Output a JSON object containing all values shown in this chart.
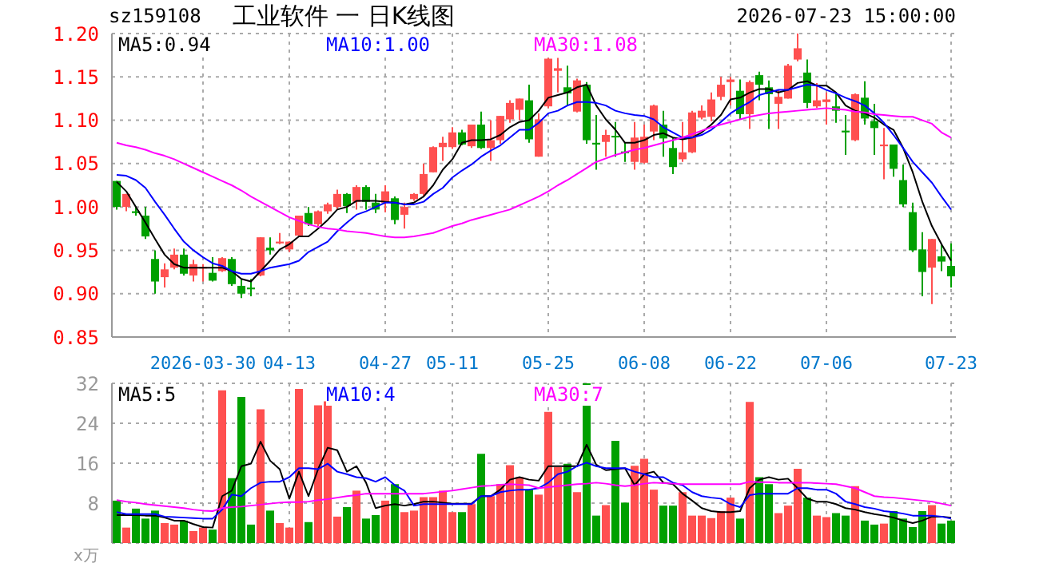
{
  "chart_data": [
    {
      "type": "candlestick",
      "title": "工业软件 一 日K线图",
      "subtitle": "sz159108",
      "annotations": [
        "2026-07-23 15:00:00"
      ],
      "categories": [
        null,
        null,
        null,
        null,
        null,
        null,
        null,
        null,
        null,
        "2026-03-30",
        null,
        null,
        null,
        null,
        null,
        null,
        null,
        null,
        "04-13",
        null,
        null,
        null,
        null,
        null,
        null,
        null,
        null,
        null,
        "04-27",
        null,
        null,
        null,
        null,
        null,
        null,
        "05-11",
        null,
        null,
        null,
        null,
        null,
        null,
        null,
        null,
        null,
        "05-25",
        null,
        null,
        null,
        null,
        null,
        null,
        null,
        null,
        null,
        "06-08",
        null,
        null,
        null,
        null,
        null,
        null,
        null,
        null,
        "06-22",
        null,
        null,
        null,
        null,
        null,
        null,
        null,
        null,
        null,
        "07-06",
        null,
        null,
        null,
        null,
        null,
        null,
        null,
        null,
        null,
        null,
        null,
        null,
        "07-23"
      ],
      "ohlc": [
        [
          1.03,
          1.03,
          0.997,
          1.0
        ],
        [
          1.0,
          1.015,
          0.995,
          1.015
        ],
        [
          0.995,
          1.0,
          0.99,
          0.993
        ],
        [
          0.99,
          1.0,
          0.963,
          0.966
        ],
        [
          0.94,
          0.95,
          0.9,
          0.914
        ],
        [
          0.919,
          0.935,
          0.907,
          0.928
        ],
        [
          0.93,
          0.952,
          0.928,
          0.945
        ],
        [
          0.945,
          0.952,
          0.921,
          0.923
        ],
        [
          0.921,
          0.939,
          0.914,
          0.934
        ],
        [
          0.929,
          0.934,
          0.914,
          0.931
        ],
        [
          0.924,
          0.942,
          0.914,
          0.915
        ],
        [
          0.926,
          0.942,
          0.925,
          0.941
        ],
        [
          0.94,
          0.942,
          0.909,
          0.911
        ],
        [
          0.909,
          0.917,
          0.895,
          0.9
        ],
        [
          0.907,
          0.917,
          0.897,
          0.905
        ],
        [
          0.921,
          0.965,
          0.92,
          0.965
        ],
        [
          0.953,
          0.965,
          0.945,
          0.95
        ],
        [
          0.958,
          0.97,
          0.957,
          0.96
        ],
        [
          0.951,
          0.96,
          0.948,
          0.96
        ],
        [
          0.967,
          0.99,
          0.966,
          0.99
        ],
        [
          0.993,
          1.0,
          0.978,
          0.98
        ],
        [
          0.98,
          0.996,
          0.978,
          0.995
        ],
        [
          0.995,
          1.005,
          0.992,
          1.003
        ],
        [
          1.0,
          1.02,
          0.997,
          1.015
        ],
        [
          1.015,
          1.016,
          0.993,
          1.001
        ],
        [
          1.006,
          1.025,
          0.997,
          1.023
        ],
        [
          1.023,
          1.025,
          0.997,
          1.006
        ],
        [
          1.005,
          1.015,
          0.993,
          0.997
        ],
        [
          1.005,
          1.025,
          0.994,
          1.018
        ],
        [
          1.01,
          1.012,
          0.98,
          0.985
        ],
        [
          0.991,
          1.005,
          0.975,
          1.0
        ],
        [
          1.009,
          1.016,
          1.007,
          1.015
        ],
        [
          1.015,
          1.05,
          1.012,
          1.038
        ],
        [
          1.04,
          1.07,
          1.04,
          1.069
        ],
        [
          1.069,
          1.081,
          1.053,
          1.074
        ],
        [
          1.069,
          1.092,
          1.067,
          1.086
        ],
        [
          1.086,
          1.089,
          1.071,
          1.072
        ],
        [
          1.07,
          1.095,
          1.068,
          1.095
        ],
        [
          1.095,
          1.11,
          1.067,
          1.068
        ],
        [
          1.068,
          1.1,
          1.053,
          1.077
        ],
        [
          1.077,
          1.105,
          1.073,
          1.105
        ],
        [
          1.101,
          1.123,
          1.097,
          1.12
        ],
        [
          1.112,
          1.125,
          1.1,
          1.125
        ],
        [
          1.123,
          1.141,
          1.074,
          1.078
        ],
        [
          1.058,
          1.108,
          1.058,
          1.101
        ],
        [
          1.116,
          1.172,
          1.114,
          1.171
        ],
        [
          1.157,
          1.172,
          1.132,
          1.16
        ],
        [
          1.138,
          1.163,
          1.117,
          1.131
        ],
        [
          1.11,
          1.148,
          1.109,
          1.146
        ],
        [
          1.141,
          1.144,
          1.073,
          1.077
        ],
        [
          1.074,
          1.106,
          1.043,
          1.072
        ],
        [
          1.075,
          1.089,
          1.058,
          1.083
        ],
        [
          1.082,
          1.098,
          1.058,
          1.081
        ],
        [
          1.064,
          1.074,
          1.052,
          1.062
        ],
        [
          1.052,
          1.098,
          1.043,
          1.08
        ],
        [
          1.051,
          1.095,
          1.05,
          1.081
        ],
        [
          1.087,
          1.118,
          1.077,
          1.117
        ],
        [
          1.095,
          1.111,
          1.058,
          1.079
        ],
        [
          1.068,
          1.08,
          1.038,
          1.046
        ],
        [
          1.055,
          1.098,
          1.052,
          1.063
        ],
        [
          1.063,
          1.111,
          1.062,
          1.109
        ],
        [
          1.103,
          1.117,
          1.101,
          1.111
        ],
        [
          1.104,
          1.132,
          1.099,
          1.124
        ],
        [
          1.127,
          1.15,
          1.123,
          1.141
        ],
        [
          1.144,
          1.15,
          1.117,
          1.147
        ],
        [
          1.134,
          1.147,
          1.101,
          1.107
        ],
        [
          1.107,
          1.146,
          1.09,
          1.144
        ],
        [
          1.152,
          1.156,
          1.123,
          1.141
        ],
        [
          1.138,
          1.146,
          1.09,
          1.13
        ],
        [
          1.119,
          1.135,
          1.09,
          1.127
        ],
        [
          1.125,
          1.165,
          1.125,
          1.163
        ],
        [
          1.17,
          1.2,
          1.168,
          1.183
        ],
        [
          1.155,
          1.17,
          1.114,
          1.12
        ],
        [
          1.116,
          1.143,
          1.114,
          1.123
        ],
        [
          1.121,
          1.132,
          1.095,
          1.124
        ],
        [
          1.116,
          1.132,
          1.097,
          1.111
        ],
        [
          1.088,
          1.106,
          1.06,
          1.086
        ],
        [
          1.077,
          1.131,
          1.076,
          1.13
        ],
        [
          1.126,
          1.145,
          1.095,
          1.102
        ],
        [
          1.099,
          1.119,
          1.06,
          1.091
        ],
        [
          1.07,
          1.091,
          1.032,
          1.072
        ],
        [
          1.072,
          1.072,
          1.035,
          1.044
        ],
        [
          1.031,
          1.049,
          1.0,
          1.003
        ],
        [
          0.994,
          1.005,
          0.948,
          0.95
        ],
        [
          0.951,
          0.971,
          0.897,
          0.925
        ],
        [
          0.93,
          0.963,
          0.888,
          0.963
        ],
        [
          0.943,
          0.957,
          0.926,
          0.937
        ],
        [
          0.932,
          0.958,
          0.907,
          0.92
        ]
      ],
      "colors": [
        "#00a000",
        "#ff5050",
        "#00a000",
        "#00a000",
        "#00a000",
        "#ff5050",
        "#ff5050",
        "#00a000",
        "#ff5050",
        "#ff5050",
        "#00a000",
        "#ff5050",
        "#00a000",
        "#00a000",
        "#00a000",
        "#ff5050",
        "#00a000",
        "#ff5050",
        "#ff5050",
        "#ff5050",
        "#00a000",
        "#ff5050",
        "#ff5050",
        "#ff5050",
        "#00a000",
        "#ff5050",
        "#00a000",
        "#00a000",
        "#ff5050",
        "#00a000",
        "#ff5050",
        "#ff5050",
        "#ff5050",
        "#ff5050",
        "#ff5050",
        "#ff5050",
        "#00a000",
        "#ff5050",
        "#00a000",
        "#ff5050",
        "#ff5050",
        "#ff5050",
        "#ff5050",
        "#00a000",
        "#ff5050",
        "#ff5050",
        "#ff5050",
        "#00a000",
        "#ff5050",
        "#00a000",
        "#00a000",
        "#ff5050",
        "#00a000",
        "#00a000",
        "#ff5050",
        "#ff5050",
        "#ff5050",
        "#00a000",
        "#00a000",
        "#ff5050",
        "#ff5050",
        "#ff5050",
        "#ff5050",
        "#ff5050",
        "#ff5050",
        "#00a000",
        "#ff5050",
        "#00a000",
        "#00a000",
        "#ff5050",
        "#ff5050",
        "#ff5050",
        "#00a000",
        "#ff5050",
        "#ff5050",
        "#00a000",
        "#00a000",
        "#ff5050",
        "#00a000",
        "#00a000",
        "#ff5050",
        "#00a000",
        "#00a000",
        "#00a000",
        "#00a000",
        "#ff5050",
        "#00a000",
        "#00a000"
      ],
      "series": [
        {
          "type": "line",
          "name": "MA5:0.94",
          "color": "#000000",
          "values": [
            1.029,
            1.018,
            1.0,
            0.982,
            0.963,
            0.945,
            0.934,
            0.93,
            0.93,
            0.93,
            0.93,
            0.93,
            0.926,
            0.917,
            0.914,
            0.926,
            0.938,
            0.951,
            0.957,
            0.966,
            0.966,
            0.975,
            0.985,
            0.997,
            1.0,
            1.007,
            1.007,
            1.007,
            1.006,
            1.005,
            1.003,
            1.005,
            1.012,
            1.025,
            1.043,
            1.055,
            1.074,
            1.077,
            1.077,
            1.078,
            1.083,
            1.092,
            1.098,
            1.1,
            1.111,
            1.126,
            1.129,
            1.132,
            1.138,
            1.141,
            1.117,
            1.101,
            1.089,
            1.074,
            1.074,
            1.077,
            1.083,
            1.085,
            1.08,
            1.078,
            1.08,
            1.086,
            1.095,
            1.106,
            1.124,
            1.126,
            1.132,
            1.136,
            1.136,
            1.132,
            1.135,
            1.143,
            1.145,
            1.14,
            1.14,
            1.132,
            1.117,
            1.111,
            1.108,
            1.103,
            1.095,
            1.089,
            1.068,
            1.04,
            1.006,
            0.978,
            0.957,
            0.938
          ]
        },
        {
          "type": "line",
          "name": "MA10:1.00",
          "color": "#0000ff",
          "values": [
            1.037,
            1.036,
            1.031,
            1.022,
            1.006,
            0.991,
            0.975,
            0.96,
            0.95,
            0.942,
            0.935,
            0.932,
            0.926,
            0.923,
            0.923,
            0.926,
            0.93,
            0.932,
            0.934,
            0.938,
            0.948,
            0.954,
            0.96,
            0.972,
            0.982,
            0.991,
            0.995,
            1.0,
            1.005,
            1.005,
            1.003,
            1.003,
            1.006,
            1.015,
            1.022,
            1.034,
            1.042,
            1.049,
            1.058,
            1.065,
            1.071,
            1.08,
            1.089,
            1.089,
            1.097,
            1.108,
            1.111,
            1.117,
            1.121,
            1.121,
            1.12,
            1.117,
            1.111,
            1.108,
            1.106,
            1.105,
            1.101,
            1.092,
            1.086,
            1.08,
            1.08,
            1.083,
            1.089,
            1.098,
            1.108,
            1.115,
            1.121,
            1.129,
            1.132,
            1.135,
            1.135,
            1.138,
            1.141,
            1.14,
            1.135,
            1.131,
            1.126,
            1.122,
            1.117,
            1.108,
            1.097,
            1.083,
            1.068,
            1.052,
            1.04,
            1.028,
            1.012,
            0.997
          ]
        },
        {
          "type": "line",
          "name": "MA30:1.08",
          "color": "#ff00ff",
          "values": [
            1.074,
            1.071,
            1.069,
            1.066,
            1.062,
            1.059,
            1.055,
            1.05,
            1.045,
            1.04,
            1.035,
            1.03,
            1.025,
            1.019,
            1.012,
            1.006,
            1.0,
            0.994,
            0.988,
            0.984,
            0.98,
            0.977,
            0.975,
            0.974,
            0.972,
            0.971,
            0.97,
            0.968,
            0.966,
            0.965,
            0.965,
            0.966,
            0.968,
            0.97,
            0.974,
            0.978,
            0.981,
            0.985,
            0.988,
            0.991,
            0.994,
            0.997,
            1.002,
            1.007,
            1.012,
            1.018,
            1.025,
            1.031,
            1.038,
            1.045,
            1.052,
            1.056,
            1.06,
            1.063,
            1.066,
            1.068,
            1.071,
            1.074,
            1.077,
            1.08,
            1.084,
            1.088,
            1.092,
            1.095,
            1.098,
            1.101,
            1.104,
            1.106,
            1.108,
            1.109,
            1.11,
            1.111,
            1.112,
            1.113,
            1.114,
            1.113,
            1.112,
            1.11,
            1.109,
            1.107,
            1.106,
            1.105,
            1.104,
            1.104,
            1.1,
            1.096,
            1.086,
            1.08
          ]
        }
      ],
      "ylim": [
        0.85,
        1.2
      ],
      "yticks": [
        {
          "value": 0.85,
          "label": "0.85"
        },
        {
          "value": 0.9,
          "label": "0.90"
        },
        {
          "value": 0.95,
          "label": "0.95"
        },
        {
          "value": 1,
          "label": "1.00"
        },
        {
          "value": 1.05,
          "label": "1.05"
        },
        {
          "value": 1.1,
          "label": "1.10"
        },
        {
          "value": 1.15,
          "label": "1.15"
        },
        {
          "value": 1.2,
          "label": "1.20"
        }
      ],
      "grid": true,
      "legend": "top"
    },
    {
      "type": "bar",
      "ylabel": "x万",
      "categories": [
        null,
        null,
        null,
        null,
        null,
        null,
        null,
        null,
        null,
        null,
        null,
        null,
        null,
        null,
        null,
        null,
        null,
        null,
        null,
        null,
        null,
        null,
        null,
        null,
        null,
        null,
        null,
        null,
        null,
        null,
        null,
        null,
        null,
        null,
        null,
        null,
        null,
        null,
        null,
        null,
        null,
        null,
        null,
        null,
        null,
        null,
        null,
        null,
        null,
        null,
        null,
        null,
        null,
        null,
        null,
        null,
        null,
        null,
        null,
        null,
        null,
        null,
        null,
        null,
        null,
        null,
        null,
        null,
        null,
        null,
        null,
        null,
        null,
        null,
        null,
        null,
        null,
        null,
        null,
        null,
        null,
        null,
        null,
        null,
        null,
        null,
        null,
        null
      ],
      "series": [
        {
          "type": "bar",
          "colors": [
            "#00a000",
            "#ff5050",
            "#00a000",
            "#00a000",
            "#00a000",
            "#ff5050",
            "#ff5050",
            "#00a000",
            "#ff5050",
            "#ff5050",
            "#00a000",
            "#ff5050",
            "#00a000",
            "#00a000",
            "#00a000",
            "#ff5050",
            "#00a000",
            "#ff5050",
            "#ff5050",
            "#ff5050",
            "#00a000",
            "#ff5050",
            "#ff5050",
            "#ff5050",
            "#00a000",
            "#ff5050",
            "#00a000",
            "#00a000",
            "#ff5050",
            "#00a000",
            "#ff5050",
            "#ff5050",
            "#ff5050",
            "#ff5050",
            "#ff5050",
            "#ff5050",
            "#00a000",
            "#ff5050",
            "#00a000",
            "#ff5050",
            "#ff5050",
            "#ff5050",
            "#ff5050",
            "#00a000",
            "#ff5050",
            "#ff5050",
            "#ff5050",
            "#00a000",
            "#ff5050",
            "#00a000",
            "#00a000",
            "#ff5050",
            "#00a000",
            "#00a000",
            "#ff5050",
            "#ff5050",
            "#ff5050",
            "#00a000",
            "#00a000",
            "#ff5050",
            "#ff5050",
            "#ff5050",
            "#ff5050",
            "#ff5050",
            "#ff5050",
            "#00a000",
            "#ff5050",
            "#00a000",
            "#00a000",
            "#ff5050",
            "#ff5050",
            "#ff5050",
            "#00a000",
            "#ff5050",
            "#ff5050",
            "#00a000",
            "#00a000",
            "#ff5050",
            "#00a000",
            "#00a000",
            "#ff5050",
            "#00a000",
            "#00a000",
            "#00a000",
            "#00a000",
            "#ff5050",
            "#00a000",
            "#00a000"
          ],
          "values": [
            8.5,
            3.1,
            6.9,
            4.9,
            6.5,
            4.0,
            3.7,
            4.5,
            2.4,
            3.1,
            2.7,
            30.6,
            13.0,
            29.3,
            3.7,
            26.8,
            6.5,
            4.0,
            3.1,
            30.9,
            4.2,
            27.6,
            28.4,
            5.3,
            7.2,
            10.5,
            4.9,
            5.6,
            8.5,
            11.8,
            6.2,
            6.5,
            9.2,
            9.2,
            10.5,
            6.2,
            6.2,
            7.8,
            17.9,
            9.4,
            11.8,
            15.6,
            13.2,
            10.7,
            9.7,
            26.3,
            15.2,
            15.9,
            10.2,
            32,
            5.5,
            7.6,
            20.5,
            8.1,
            15.5,
            16.9,
            10.7,
            7.5,
            7.5,
            10.2,
            5.5,
            5.5,
            5.0,
            6.4,
            9.1,
            4.9,
            28.3,
            13.2,
            11.8,
            6.0,
            7.5,
            14.9,
            9.1,
            5.5,
            5.2,
            6.0,
            5.5,
            11.4,
            4.5,
            3.7,
            3.9,
            6.4,
            4.9,
            3.2,
            6.4,
            7.6,
            3.9,
            4.5
          ]
        },
        {
          "type": "line",
          "name": "MA5:5",
          "color": "#000000",
          "values": [
            5.6,
            5.6,
            5.6,
            5.5,
            5.5,
            5.1,
            4.5,
            4.5,
            3.8,
            3.2,
            3.1,
            9.4,
            10.5,
            15.4,
            15.9,
            20.3,
            16.5,
            14.8,
            8.9,
            14.3,
            9.4,
            14.8,
            19.1,
            18.6,
            14.3,
            15.4,
            12.1,
            7.0,
            7.5,
            7.8,
            7.5,
            7.8,
            8.3,
            8.3,
            8.1,
            7.9,
            7.9,
            7.9,
            9.4,
            9.4,
            10.7,
            12.7,
            13.2,
            12.7,
            12.5,
            15.4,
            15.4,
            15.4,
            15.4,
            19.7,
            15.7,
            14.6,
            14.8,
            15.0,
            11.6,
            13.8,
            14.3,
            12.1,
            11.8,
            9.9,
            8.5,
            7.0,
            6.4,
            6.2,
            6.2,
            6.4,
            11.0,
            12.7,
            13.2,
            12.7,
            12.9,
            11.0,
            8.9,
            8.3,
            8.3,
            7.8,
            7.0,
            6.7,
            6.2,
            5.8,
            5.5,
            5.1,
            4.5,
            4.0,
            4.5,
            5.3,
            5.3,
            5.1
          ]
        },
        {
          "type": "line",
          "name": "MA10:4",
          "color": "#0000ff",
          "values": [
            6.2,
            5.8,
            5.8,
            5.8,
            5.8,
            5.3,
            5.2,
            5.1,
            5.0,
            4.9,
            4.9,
            6.7,
            9.7,
            9.4,
            11.0,
            12.1,
            12.3,
            12.3,
            13.2,
            15.0,
            15.0,
            14.8,
            15.9,
            14.3,
            13.8,
            13.2,
            13.0,
            12.3,
            13.2,
            11.6,
            10.5,
            7.5,
            7.8,
            7.8,
            7.8,
            7.8,
            7.8,
            7.8,
            9.4,
            9.4,
            10.2,
            10.5,
            10.7,
            10.7,
            11.0,
            12.1,
            13.8,
            14.3,
            15.4,
            16.1,
            15.4,
            15.0,
            15.0,
            15.0,
            14.3,
            13.8,
            13.2,
            13.2,
            12.1,
            11.6,
            10.2,
            9.4,
            9.1,
            8.9,
            7.8,
            7.2,
            9.6,
            9.9,
            9.9,
            9.9,
            9.9,
            11.0,
            11.0,
            10.7,
            10.7,
            9.9,
            8.3,
            7.8,
            7.2,
            6.9,
            6.4,
            6.2,
            5.9,
            5.5,
            5.5,
            5.5,
            5.3,
            4.9
          ]
        },
        {
          "type": "line",
          "name": "MA30:7",
          "color": "#ff00ff",
          "values": [
            8.6,
            8.3,
            8.1,
            7.8,
            7.6,
            7.4,
            7.2,
            7.0,
            6.7,
            6.5,
            6.4,
            7.0,
            7.2,
            7.3,
            7.5,
            7.7,
            7.9,
            8.1,
            8.2,
            8.2,
            8.3,
            8.6,
            8.8,
            9.1,
            9.4,
            9.6,
            9.9,
            9.9,
            9.9,
            9.9,
            9.9,
            9.9,
            9.9,
            10.1,
            10.3,
            10.5,
            10.8,
            11.1,
            11.4,
            11.5,
            11.7,
            11.8,
            11.7,
            11.6,
            11.0,
            11.2,
            11.4,
            11.6,
            11.8,
            11.9,
            12.1,
            11.9,
            11.6,
            11.4,
            11.6,
            11.9,
            12.1,
            12.0,
            11.9,
            11.8,
            11.8,
            11.8,
            11.8,
            11.8,
            11.8,
            11.8,
            12.3,
            12.2,
            12.2,
            12.1,
            12.1,
            12.1,
            12.1,
            12.0,
            11.9,
            11.8,
            11.4,
            11.0,
            10.2,
            9.4,
            9.2,
            9.1,
            8.9,
            8.7,
            8.5,
            8.3,
            7.9,
            7.5
          ]
        }
      ],
      "ylim": [
        0,
        32
      ],
      "yticks": [
        8,
        16,
        24,
        32
      ],
      "grid": true,
      "legend": "top",
      "tick_labels": "y"
    }
  ]
}
